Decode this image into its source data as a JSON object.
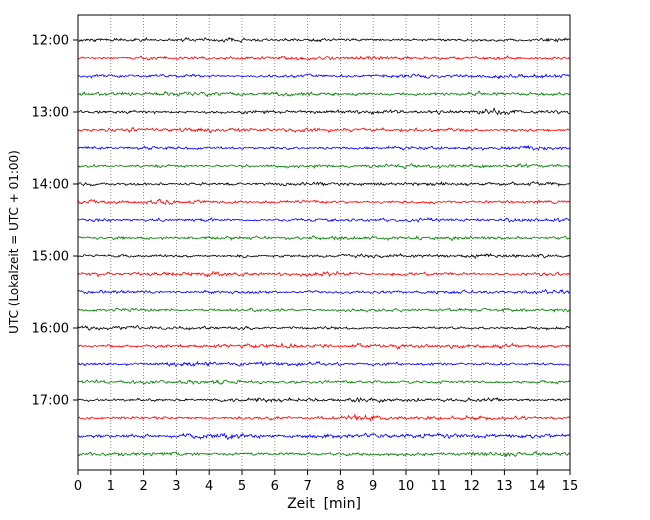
{
  "chart_data": {
    "type": "line",
    "subtype": "seismogram-dayplot",
    "title": "",
    "xlabel": "Zeit  [min]",
    "ylabel": "UTC (Lokalzeit = UTC + 01:00)",
    "xlim": [
      0,
      15
    ],
    "x_ticks": [
      "0",
      "1",
      "2",
      "3",
      "4",
      "5",
      "6",
      "7",
      "8",
      "9",
      "10",
      "11",
      "12",
      "13",
      "14",
      "15"
    ],
    "y_tick_labels": [
      "12:00",
      "13:00",
      "14:00",
      "15:00",
      "16:00",
      "17:00"
    ],
    "grid": "dotted vertical gridlines at every minute",
    "legend": "none",
    "interval_minutes": 15,
    "colors": {
      "black": "#000000",
      "red": "#ff0000",
      "blue": "#0000ff",
      "green": "#007f00",
      "axis": "#000000",
      "background": "#ffffff"
    },
    "traces": [
      {
        "time": "12:00",
        "color": "#000000",
        "amp": 1.0,
        "bursts": []
      },
      {
        "time": "12:15",
        "color": "#ff0000",
        "amp": 1.0,
        "bursts": []
      },
      {
        "time": "12:30",
        "color": "#0000ff",
        "amp": 1.0,
        "bursts": []
      },
      {
        "time": "12:45",
        "color": "#007f00",
        "amp": 1.1,
        "bursts": [
          {
            "min": 12.3,
            "gain": 0.7
          }
        ]
      },
      {
        "time": "13:00",
        "color": "#000000",
        "amp": 1.1,
        "bursts": [
          {
            "min": 12.8,
            "gain": 0.6
          }
        ]
      },
      {
        "time": "13:15",
        "color": "#ff0000",
        "amp": 1.0,
        "bursts": [
          {
            "min": 1.5,
            "gain": 0.5
          }
        ]
      },
      {
        "time": "13:30",
        "color": "#0000ff",
        "amp": 1.0,
        "bursts": []
      },
      {
        "time": "13:45",
        "color": "#007f00",
        "amp": 1.0,
        "bursts": []
      },
      {
        "time": "14:00",
        "color": "#000000",
        "amp": 1.0,
        "bursts": [
          {
            "min": 2.0,
            "gain": 0.4
          }
        ]
      },
      {
        "time": "14:15",
        "color": "#ff0000",
        "amp": 1.0,
        "bursts": [
          {
            "min": 2.5,
            "gain": 0.5
          }
        ]
      },
      {
        "time": "14:30",
        "color": "#0000ff",
        "amp": 1.0,
        "bursts": [
          {
            "min": 2.5,
            "gain": 0.4
          }
        ]
      },
      {
        "time": "14:45",
        "color": "#007f00",
        "amp": 1.0,
        "bursts": []
      },
      {
        "time": "15:00",
        "color": "#000000",
        "amp": 1.0,
        "bursts": []
      },
      {
        "time": "15:15",
        "color": "#ff0000",
        "amp": 1.1,
        "bursts": [
          {
            "min": 7.5,
            "gain": 0.4
          }
        ]
      },
      {
        "time": "15:30",
        "color": "#0000ff",
        "amp": 1.0,
        "bursts": [
          {
            "min": 5.5,
            "gain": 0.5
          }
        ]
      },
      {
        "time": "15:45",
        "color": "#007f00",
        "amp": 1.0,
        "bursts": []
      },
      {
        "time": "16:00",
        "color": "#000000",
        "amp": 1.0,
        "bursts": []
      },
      {
        "time": "16:15",
        "color": "#ff0000",
        "amp": 1.1,
        "bursts": [
          {
            "min": 6.5,
            "gain": 0.5
          },
          {
            "min": 12.0,
            "gain": 0.5
          }
        ]
      },
      {
        "time": "16:30",
        "color": "#0000ff",
        "amp": 1.0,
        "bursts": [
          {
            "min": 3.5,
            "gain": 0.4
          }
        ]
      },
      {
        "time": "16:45",
        "color": "#007f00",
        "amp": 1.0,
        "bursts": []
      },
      {
        "time": "17:00",
        "color": "#000000",
        "amp": 1.0,
        "bursts": []
      },
      {
        "time": "17:15",
        "color": "#ff0000",
        "amp": 1.0,
        "bursts": [
          {
            "min": 8.7,
            "gain": 1.2
          }
        ]
      },
      {
        "time": "17:30",
        "color": "#0000ff",
        "amp": 1.2,
        "bursts": [
          {
            "min": 3.5,
            "gain": 0.8
          },
          {
            "min": 4.6,
            "gain": 0.6
          }
        ]
      },
      {
        "time": "17:45",
        "color": "#007f00",
        "amp": 1.1,
        "bursts": [
          {
            "min": 13.0,
            "gain": 0.6
          }
        ]
      }
    ]
  }
}
